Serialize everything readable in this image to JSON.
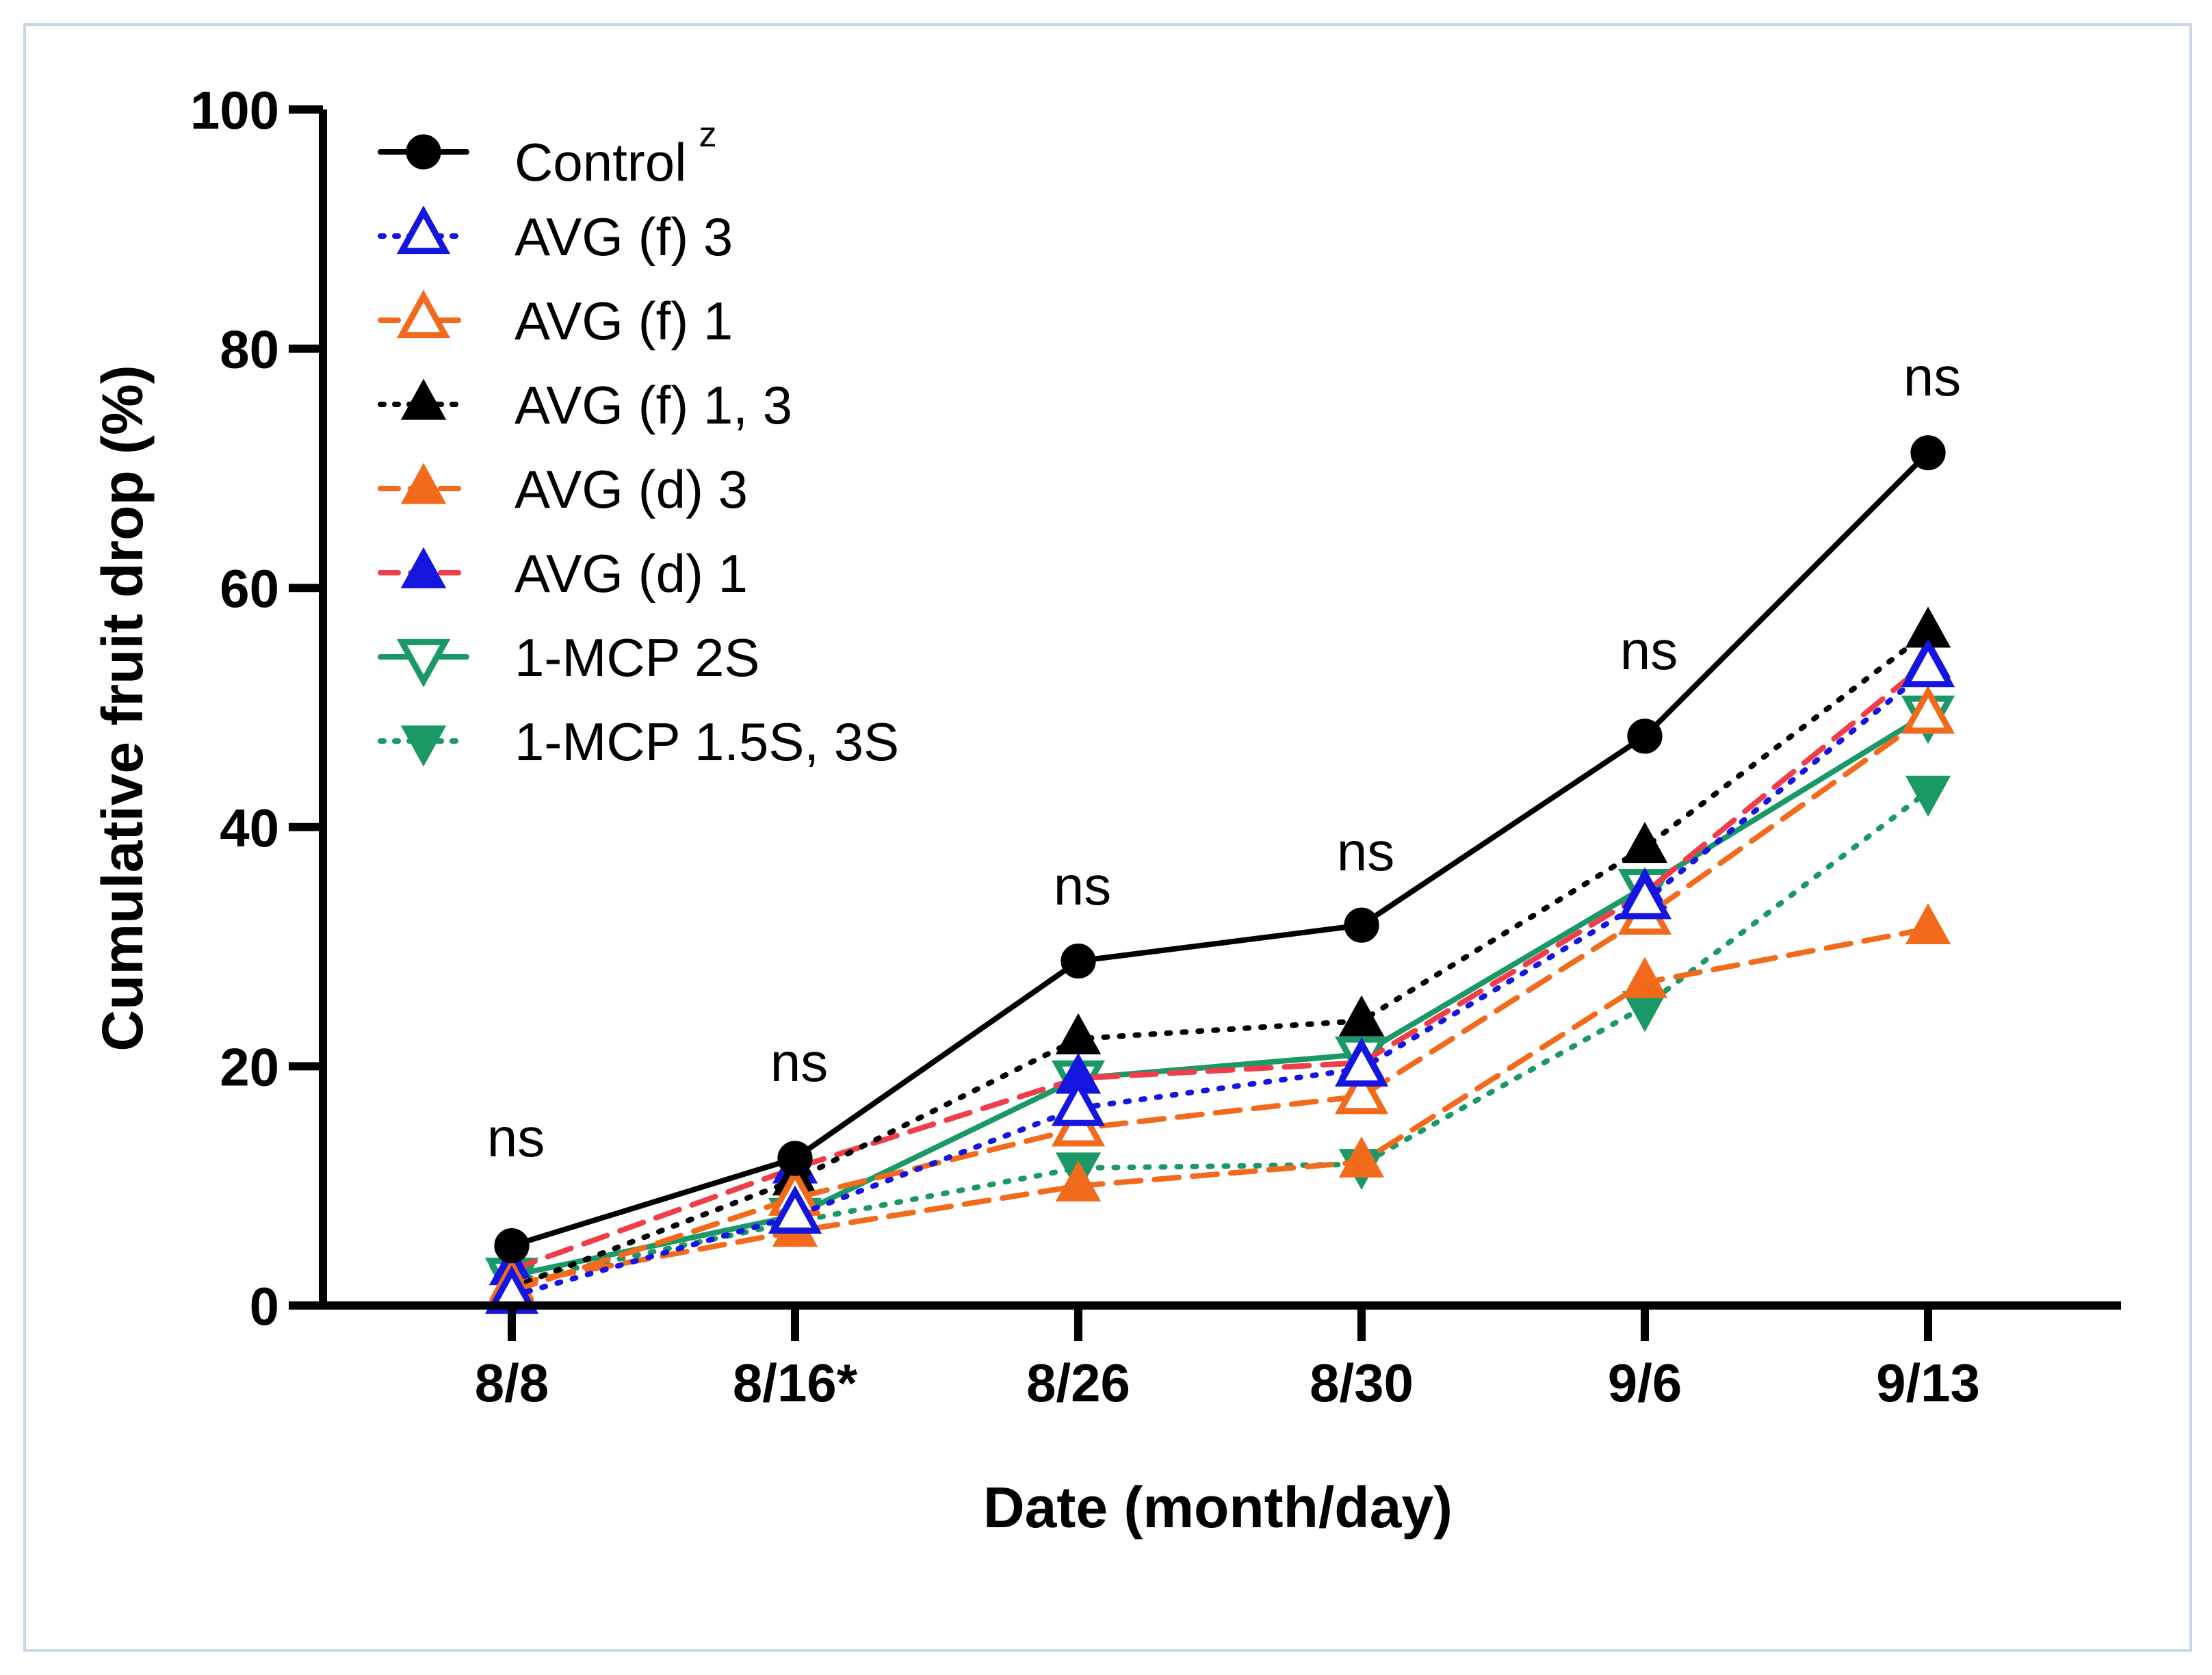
{
  "chart_data": {
    "type": "line",
    "title": "",
    "xlabel": "Date (month/day)",
    "ylabel": "Cumulative fruit drop (%)",
    "ylim": [
      0,
      100
    ],
    "yticks": [
      0,
      20,
      40,
      60,
      80,
      100
    ],
    "categories": [
      "8/8",
      "8/16*",
      "8/26",
      "8/30",
      "9/6",
      "9/13"
    ],
    "significance": [
      "ns",
      "ns",
      "ns",
      "ns",
      "ns",
      "ns"
    ],
    "legend_position": "top-left",
    "series": [
      {
        "name": "Control",
        "superscript": "z",
        "values": [
          5,
          12.3,
          28.8,
          31.8,
          47.6,
          71.3
        ],
        "color": "#000000",
        "line_color": "#000000",
        "line_style": "solid",
        "marker": "circle",
        "fill": true
      },
      {
        "name": "AVG (f) 3",
        "values": [
          0.8,
          7.5,
          16.5,
          19.8,
          33.8,
          53.2
        ],
        "color": "#1515e0",
        "line_color": "#1515e0",
        "line_style": "dotted",
        "marker": "triangle-up",
        "fill": false
      },
      {
        "name": "AVG (f) 1",
        "values": [
          1.2,
          9,
          14.8,
          17.5,
          32.5,
          49.3
        ],
        "color": "#f26b1d",
        "line_color": "#f26b1d",
        "line_style": "dashed",
        "marker": "triangle-up",
        "fill": false
      },
      {
        "name": "AVG (f) 1, 3",
        "values": [
          1.5,
          10.5,
          22.3,
          23.8,
          38.3,
          56.3
        ],
        "color": "#000000",
        "line_color": "#000000",
        "line_style": "dotted",
        "marker": "triangle-up",
        "fill": true
      },
      {
        "name": "AVG (d) 3",
        "values": [
          1.8,
          6.2,
          10,
          12,
          27,
          31.5
        ],
        "color": "#f26b1d",
        "line_color": "#f26b1d",
        "line_style": "dashed",
        "marker": "triangle-up",
        "fill": true
      },
      {
        "name": "AVG (d) 1",
        "values": [
          3,
          11.5,
          19,
          20.3,
          34.5,
          53.8
        ],
        "color": "#1515e0",
        "line_color": "#ef3e4a",
        "line_style": "dashed",
        "marker": "triangle-up",
        "fill": true
      },
      {
        "name": "1-MCP 2S",
        "values": [
          2.5,
          7.5,
          19,
          21,
          35,
          49.5
        ],
        "color": "#1a9966",
        "line_color": "#1a9966",
        "line_style": "solid",
        "marker": "triangle-down",
        "fill": false
      },
      {
        "name": "1-MCP 1.5S, 3S",
        "values": [
          2,
          7,
          11.5,
          11.8,
          25,
          43
        ],
        "color": "#1a9966",
        "line_color": "#1a9966",
        "line_style": "dotted",
        "marker": "triangle-down",
        "fill": true
      }
    ]
  }
}
